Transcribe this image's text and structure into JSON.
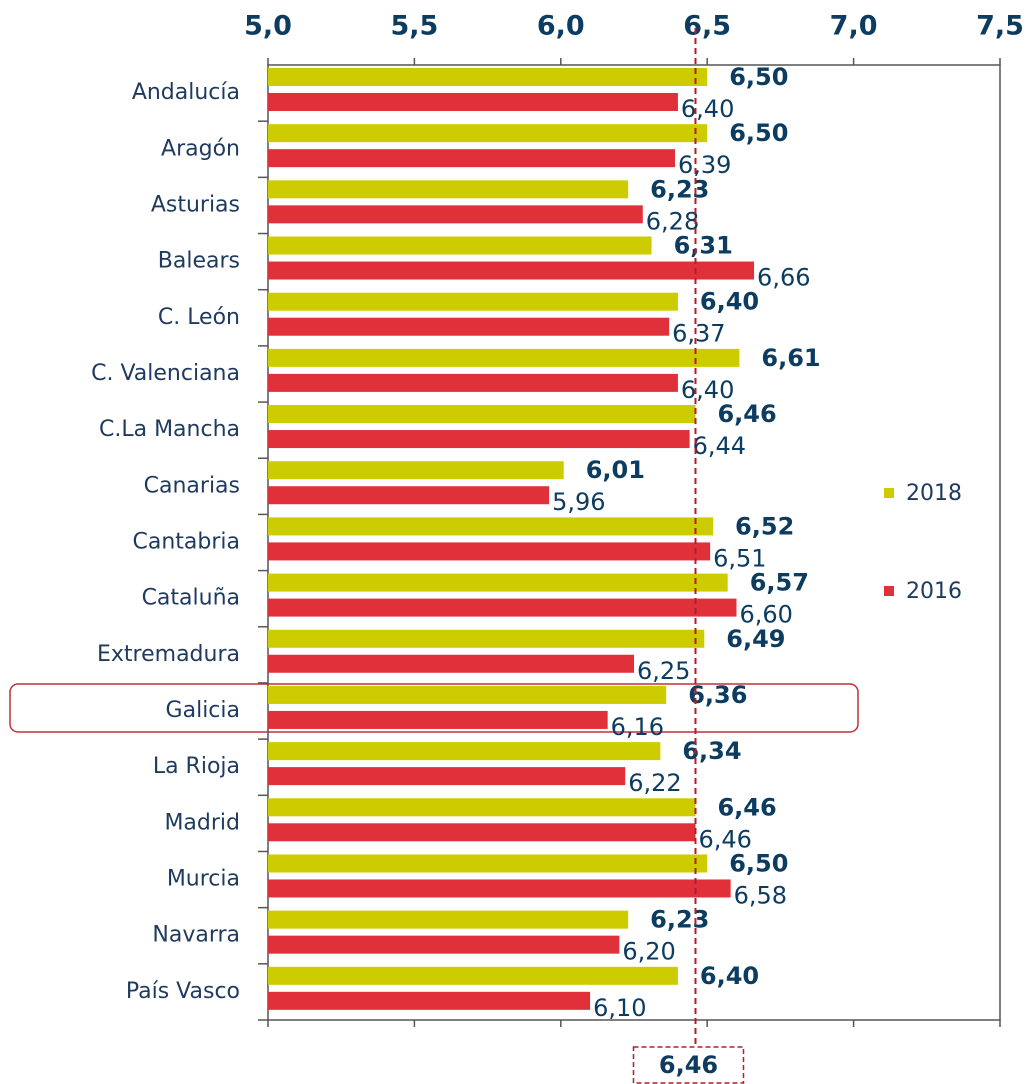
{
  "chart_data": {
    "type": "bar",
    "orientation": "horizontal",
    "categories": [
      "Andalucía",
      "Aragón",
      "Asturias",
      "Balears",
      "C. León",
      "C. Valenciana",
      "C.La Mancha",
      "Canarias",
      "Cantabria",
      "Cataluña",
      "Extremadura",
      "Galicia",
      "La Rioja",
      "Madrid",
      "Murcia",
      "Navarra",
      "País Vasco"
    ],
    "series": [
      {
        "name": "2018",
        "color": "#cccc00",
        "values": [
          6.5,
          6.5,
          6.23,
          6.31,
          6.4,
          6.61,
          6.46,
          6.01,
          6.52,
          6.57,
          6.49,
          6.36,
          6.34,
          6.46,
          6.5,
          6.23,
          6.4
        ],
        "value_labels": [
          "6,50",
          "6,50",
          "6,23",
          "6,31",
          "6,40",
          "6,61",
          "6,46",
          "6,01",
          "6,52",
          "6,57",
          "6,49",
          "6,36",
          "6,34",
          "6,46",
          "6,50",
          "6,23",
          "6,40"
        ]
      },
      {
        "name": "2016",
        "color": "#e0303a",
        "values": [
          6.4,
          6.39,
          6.28,
          6.66,
          6.37,
          6.4,
          6.44,
          5.96,
          6.51,
          6.6,
          6.25,
          6.16,
          6.22,
          6.46,
          6.58,
          6.2,
          6.1
        ],
        "value_labels": [
          "6,40",
          "6,39",
          "6,28",
          "6,66",
          "6,37",
          "6,40",
          "6,44",
          "5,96",
          "6,51",
          "6,60",
          "6,25",
          "6,16",
          "6,22",
          "6,46",
          "6,58",
          "6,20",
          "6,10"
        ]
      }
    ],
    "xlim": [
      5.0,
      7.5
    ],
    "xticks": [
      {
        "value": 5.0,
        "label": "5,0"
      },
      {
        "value": 5.5,
        "label": "5,5"
      },
      {
        "value": 6.0,
        "label": "6,0"
      },
      {
        "value": 6.5,
        "label": "6,5"
      },
      {
        "value": 7.0,
        "label": "7,0"
      },
      {
        "value": 7.5,
        "label": "7,5"
      }
    ],
    "reference_line": {
      "value": 6.46,
      "label": "6,46"
    },
    "legend": "right",
    "grid": false
  }
}
